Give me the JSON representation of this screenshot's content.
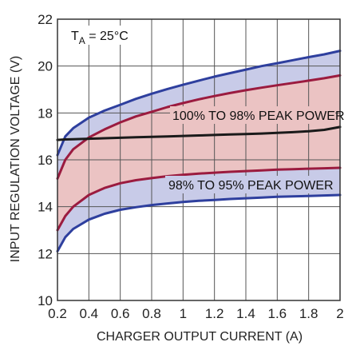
{
  "chart_data": {
    "type": "line",
    "xlabel": "CHARGER OUTPUT CURRENT (A)",
    "ylabel": "INPUT REGULATION VOLTAGE (V)",
    "xlim": [
      0.2,
      2.0
    ],
    "ylim": [
      10,
      22
    ],
    "grid": true,
    "x_ticks": [
      "0.2",
      "0.4",
      "0.6",
      "0.8",
      "1",
      "1.2",
      "1.4",
      "1.6",
      "1.8",
      "2"
    ],
    "y_ticks": [
      "10",
      "12",
      "14",
      "16",
      "18",
      "20",
      "22"
    ],
    "condition_label": {
      "main": "T",
      "sub": "A",
      "rest": " = 25°C"
    },
    "annotations": [
      "100% TO 98% PEAK POWER",
      "98% TO 95% PEAK POWER"
    ],
    "colors": {
      "outer_band_fill": "#c8cbe8",
      "inner_band_fill": "#ebc3c3",
      "outer_line": "#2e3f9e",
      "inner_line": "#9b1b3f",
      "black_line": "#1a1a1a"
    },
    "x": [
      0.2,
      0.25,
      0.3,
      0.4,
      0.5,
      0.6,
      0.7,
      0.8,
      0.9,
      1.0,
      1.1,
      1.2,
      1.3,
      1.4,
      1.5,
      1.6,
      1.7,
      1.8,
      1.9,
      2.0
    ],
    "series": [
      {
        "values": [
          16.2,
          17.0,
          17.35,
          17.8,
          18.1,
          18.35,
          18.6,
          18.82,
          19.02,
          19.2,
          19.38,
          19.55,
          19.7,
          19.85,
          20.0,
          20.12,
          20.25,
          20.38,
          20.5,
          20.65
        ]
      },
      {
        "values": [
          15.2,
          16.0,
          16.45,
          16.95,
          17.3,
          17.6,
          17.85,
          18.05,
          18.25,
          18.42,
          18.58,
          18.72,
          18.85,
          18.97,
          19.08,
          19.18,
          19.28,
          19.38,
          19.48,
          19.6
        ]
      },
      {
        "values": [
          16.85,
          16.87,
          16.88,
          16.9,
          16.92,
          16.94,
          16.96,
          16.98,
          17.0,
          17.02,
          17.04,
          17.06,
          17.08,
          17.1,
          17.12,
          17.15,
          17.18,
          17.22,
          17.28,
          17.4
        ]
      },
      {
        "values": [
          13.0,
          13.6,
          14.0,
          14.5,
          14.8,
          15.0,
          15.13,
          15.22,
          15.3,
          15.36,
          15.41,
          15.45,
          15.49,
          15.52,
          15.55,
          15.58,
          15.6,
          15.62,
          15.64,
          15.66
        ]
      },
      {
        "values": [
          12.1,
          12.7,
          13.05,
          13.45,
          13.7,
          13.87,
          13.98,
          14.07,
          14.14,
          14.2,
          14.25,
          14.29,
          14.33,
          14.36,
          14.39,
          14.42,
          14.44,
          14.46,
          14.48,
          14.5
        ]
      }
    ]
  }
}
